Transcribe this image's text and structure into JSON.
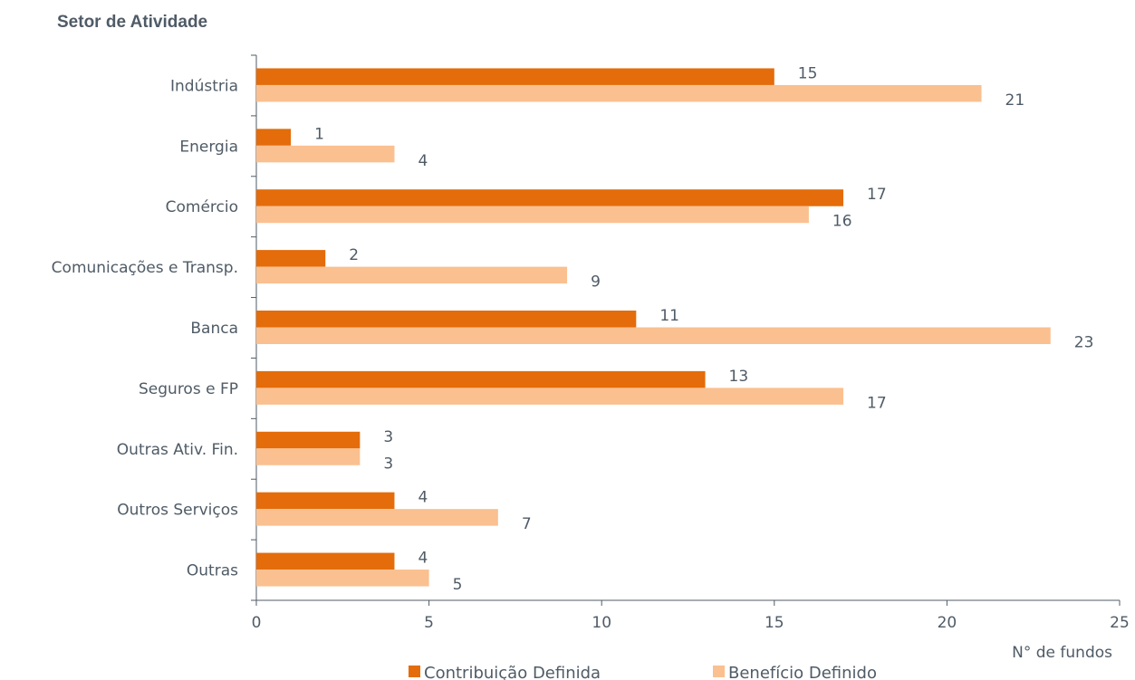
{
  "chart_data": {
    "type": "bar",
    "orientation": "horizontal",
    "title": "Setor de Atividade",
    "xlabel": "N° de fundos",
    "xlim": [
      0,
      25
    ],
    "xticks": [
      0,
      5,
      10,
      15,
      20,
      25
    ],
    "categories": [
      "Indústria",
      "Energia",
      "Comércio",
      "Comunicações e Transp.",
      "Banca",
      "Seguros e FP",
      "Outras Ativ. Fin.",
      "Outros Serviços",
      "Outras"
    ],
    "series": [
      {
        "name": "Contribuição Definida",
        "color": "#e46c0a",
        "values": [
          15,
          1,
          17,
          2,
          11,
          13,
          3,
          4,
          4
        ]
      },
      {
        "name": "Benefício Definido",
        "color": "#fac090",
        "values": [
          21,
          4,
          16,
          9,
          23,
          17,
          3,
          7,
          5
        ]
      }
    ],
    "grid": false,
    "legend_position": "bottom"
  }
}
